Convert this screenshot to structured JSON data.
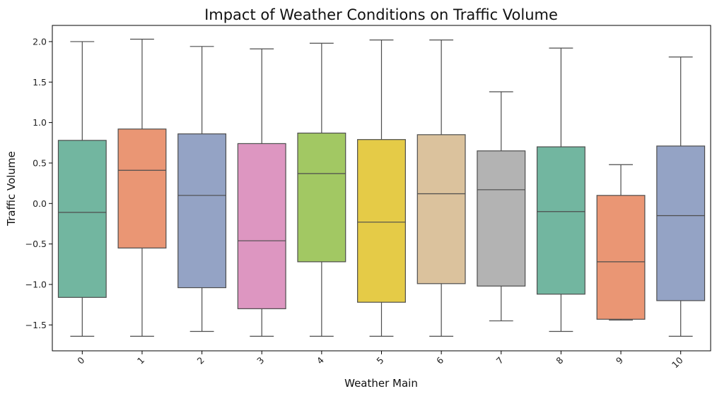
{
  "chart_data": {
    "type": "boxplot",
    "title": "Impact of Weather Conditions on Traffic Volume",
    "xlabel": "Weather Main",
    "ylabel": "Traffic Volume",
    "ylim": [
      -1.82,
      2.2
    ],
    "yticks": [
      2.0,
      1.5,
      1.0,
      0.5,
      0.0,
      -0.5,
      -1.0,
      -1.5
    ],
    "ytick_labels": [
      "2.0",
      "1.5",
      "1.0",
      "0.5",
      "0.0",
      "−0.5",
      "−1.0",
      "−1.5"
    ],
    "categories": [
      "0",
      "1",
      "2",
      "3",
      "4",
      "5",
      "6",
      "7",
      "8",
      "9",
      "10"
    ],
    "boxes": [
      {
        "category": "0",
        "whisker_low": -1.64,
        "q1": -1.16,
        "median": -0.11,
        "q3": 0.78,
        "whisker_high": 2.0,
        "color": "#72b6a0"
      },
      {
        "category": "1",
        "whisker_low": -1.64,
        "q1": -0.55,
        "median": 0.41,
        "q3": 0.92,
        "whisker_high": 2.03,
        "color": "#ea9674"
      },
      {
        "category": "2",
        "whisker_low": -1.58,
        "q1": -1.04,
        "median": 0.1,
        "q3": 0.86,
        "whisker_high": 1.94,
        "color": "#94a3c5"
      },
      {
        "category": "3",
        "whisker_low": -1.64,
        "q1": -1.3,
        "median": -0.46,
        "q3": 0.74,
        "whisker_high": 1.91,
        "color": "#dd96c1"
      },
      {
        "category": "4",
        "whisker_low": -1.64,
        "q1": -0.72,
        "median": 0.37,
        "q3": 0.87,
        "whisker_high": 1.98,
        "color": "#a2c863"
      },
      {
        "category": "5",
        "whisker_low": -1.64,
        "q1": -1.22,
        "median": -0.23,
        "q3": 0.79,
        "whisker_high": 2.02,
        "color": "#e5cb47"
      },
      {
        "category": "6",
        "whisker_low": -1.64,
        "q1": -0.99,
        "median": 0.12,
        "q3": 0.85,
        "whisker_high": 2.02,
        "color": "#dbc29d"
      },
      {
        "category": "7",
        "whisker_low": -1.45,
        "q1": -1.02,
        "median": 0.17,
        "q3": 0.65,
        "whisker_high": 1.38,
        "color": "#b3b3b3"
      },
      {
        "category": "8",
        "whisker_low": -1.58,
        "q1": -1.12,
        "median": -0.1,
        "q3": 0.7,
        "whisker_high": 1.92,
        "color": "#72b6a0"
      },
      {
        "category": "9",
        "whisker_low": -1.44,
        "q1": -1.43,
        "median": -0.72,
        "q3": 0.1,
        "whisker_high": 0.48,
        "color": "#ea9674"
      },
      {
        "category": "10",
        "whisker_low": -1.64,
        "q1": -1.2,
        "median": -0.15,
        "q3": 0.71,
        "whisker_high": 1.81,
        "color": "#94a3c5"
      }
    ],
    "grid": false,
    "legend": "none"
  }
}
